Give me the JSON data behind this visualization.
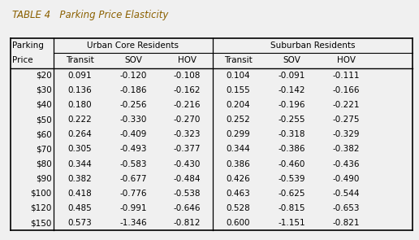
{
  "title": "TABLE 4   Parking Price Elasticity",
  "title_color": "#8B6000",
  "rows": [
    [
      "$20",
      "0.091",
      "-0.120",
      "-0.108",
      "0.104",
      "-0.091",
      "-0.111"
    ],
    [
      "$30",
      "0.136",
      "-0.186",
      "-0.162",
      "0.155",
      "-0.142",
      "-0.166"
    ],
    [
      "$40",
      "0.180",
      "-0.256",
      "-0.216",
      "0.204",
      "-0.196",
      "-0.221"
    ],
    [
      "$50",
      "0.222",
      "-0.330",
      "-0.270",
      "0.252",
      "-0.255",
      "-0.275"
    ],
    [
      "$60",
      "0.264",
      "-0.409",
      "-0.323",
      "0.299",
      "-0.318",
      "-0.329"
    ],
    [
      "$70",
      "0.305",
      "-0.493",
      "-0.377",
      "0.344",
      "-0.386",
      "-0.382"
    ],
    [
      "$80",
      "0.344",
      "-0.583",
      "-0.430",
      "0.386",
      "-0.460",
      "-0.436"
    ],
    [
      "$90",
      "0.382",
      "-0.677",
      "-0.484",
      "0.426",
      "-0.539",
      "-0.490"
    ],
    [
      "$100",
      "0.418",
      "-0.776",
      "-0.538",
      "0.463",
      "-0.625",
      "-0.544"
    ],
    [
      "$120",
      "0.485",
      "-0.991",
      "-0.646",
      "0.528",
      "-0.815",
      "-0.653"
    ],
    [
      "$150",
      "0.573",
      "-1.346",
      "-0.812",
      "0.600",
      "-1.151",
      "-0.821"
    ]
  ],
  "background_color": "#f0f0f0",
  "font_size": 7.5,
  "title_font_size": 8.5
}
